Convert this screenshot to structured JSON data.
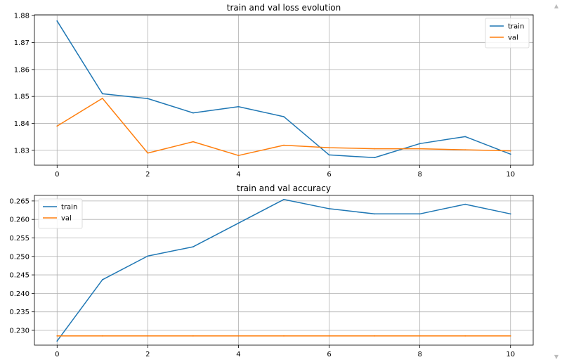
{
  "colors": {
    "train": "#1f77b4",
    "val": "#ff7f0e",
    "grid": "#b0b0b0"
  },
  "scrollbar": {
    "up_icon": "▲",
    "down_icon": "▼"
  },
  "chart_data": [
    {
      "type": "line",
      "title": "train and val loss evolution",
      "x": [
        0,
        1,
        2,
        3,
        4,
        5,
        6,
        7,
        8,
        9,
        10
      ],
      "xlim": [
        -0.5,
        10.5
      ],
      "ylim": [
        1.8245,
        1.8803
      ],
      "xticks": [
        0,
        2,
        4,
        6,
        8,
        10
      ],
      "yticks": [
        1.83,
        1.84,
        1.85,
        1.86,
        1.87,
        1.88
      ],
      "ytick_decimals": 2,
      "grid": true,
      "legend_position": "top-right",
      "series": [
        {
          "name": "train",
          "color": "#1f77b4",
          "values": [
            1.878,
            1.851,
            1.8492,
            1.8439,
            1.8462,
            1.8425,
            1.8283,
            1.8273,
            1.8325,
            1.8351,
            1.8286
          ]
        },
        {
          "name": "val",
          "color": "#ff7f0e",
          "values": [
            1.839,
            1.8493,
            1.829,
            1.8332,
            1.8281,
            1.8319,
            1.831,
            1.8306,
            1.8306,
            1.8302,
            1.8298
          ]
        }
      ]
    },
    {
      "type": "line",
      "title": "train and val accuracy",
      "x": [
        0,
        1,
        2,
        3,
        4,
        5,
        6,
        7,
        8,
        9,
        10
      ],
      "xlim": [
        -0.5,
        10.5
      ],
      "ylim": [
        0.226,
        0.2665
      ],
      "xticks": [
        0,
        2,
        4,
        6,
        8,
        10
      ],
      "yticks": [
        0.23,
        0.235,
        0.24,
        0.245,
        0.25,
        0.255,
        0.26,
        0.265
      ],
      "ytick_decimals": 3,
      "grid": true,
      "legend_position": "top-left",
      "series": [
        {
          "name": "train",
          "color": "#1f77b4",
          "values": [
            0.2271,
            0.2437,
            0.2501,
            0.2526,
            0.259,
            0.2654,
            0.2629,
            0.2615,
            0.2615,
            0.2641,
            0.2615
          ]
        },
        {
          "name": "val",
          "color": "#ff7f0e",
          "values": [
            0.2285,
            0.2285,
            0.2285,
            0.2285,
            0.2285,
            0.2285,
            0.2285,
            0.2285,
            0.2285,
            0.2285,
            0.2285
          ]
        }
      ]
    }
  ]
}
